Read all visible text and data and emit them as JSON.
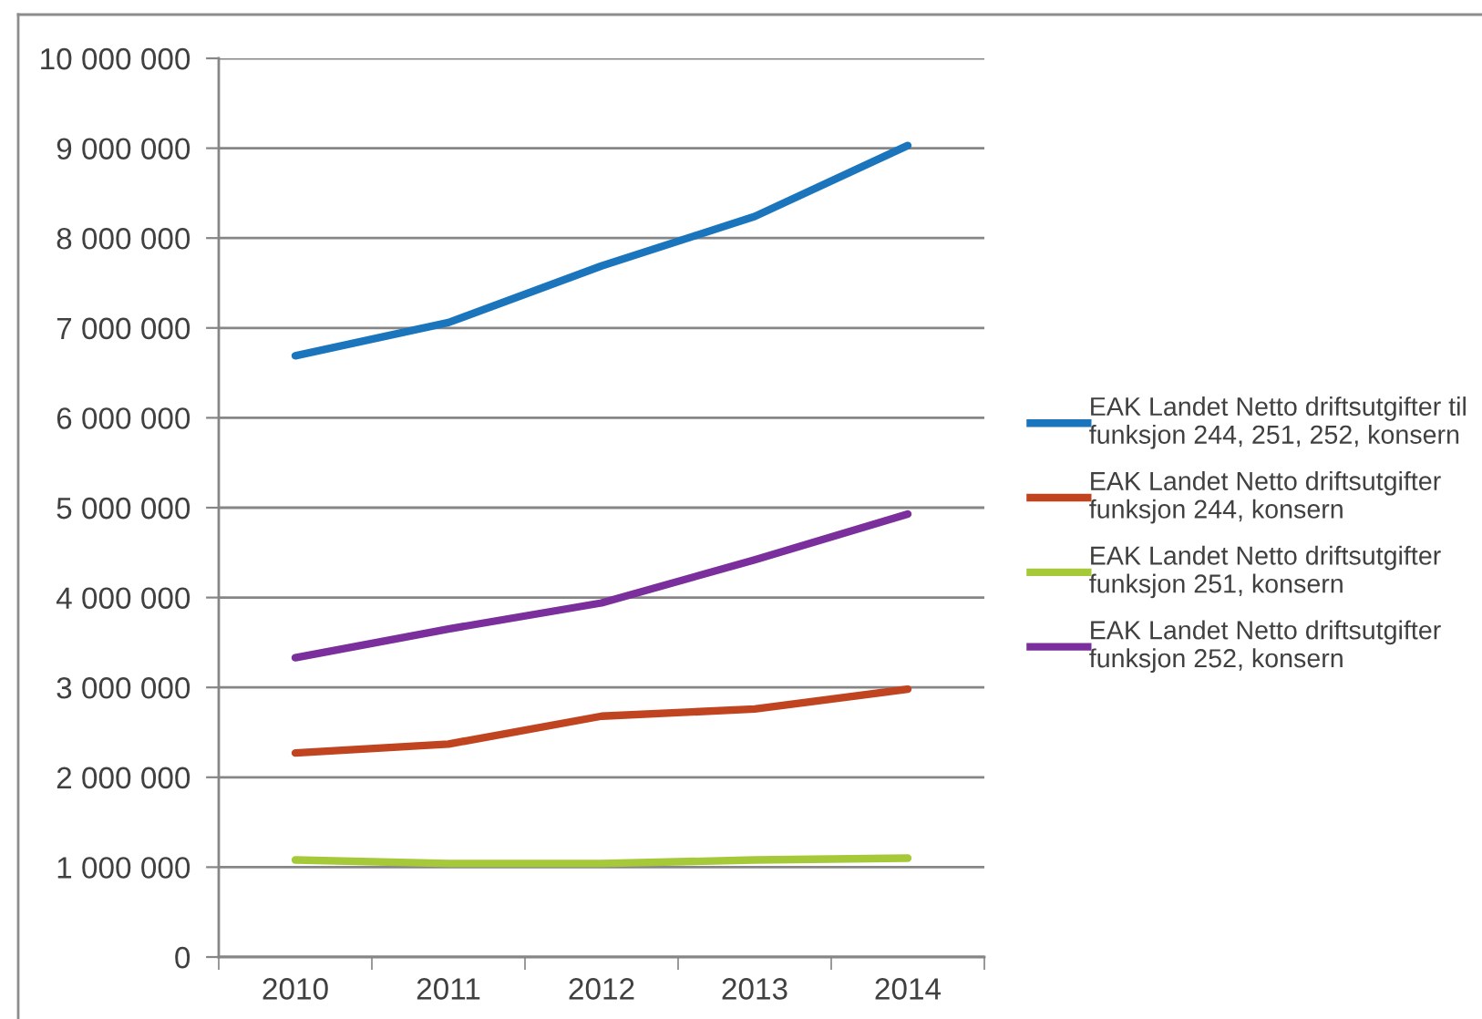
{
  "chart_data": {
    "type": "line",
    "categories": [
      "2010",
      "2011",
      "2012",
      "2013",
      "2014"
    ],
    "series": [
      {
        "name": "EAK Landet Netto driftsutgifter til funksjon 244, 251, 252, konsern",
        "color": "#1a75bc",
        "values": [
          6690000,
          7060000,
          7690000,
          8240000,
          9030000
        ]
      },
      {
        "name": "EAK Landet Netto driftsutgifter funksjon 244, konsern",
        "color": "#c0441f",
        "values": [
          2270000,
          2370000,
          2680000,
          2760000,
          2980000
        ]
      },
      {
        "name": "EAK Landet Netto driftsutgifter funksjon 251, konsern",
        "color": "#a6c93a",
        "values": [
          1080000,
          1040000,
          1040000,
          1080000,
          1100000
        ]
      },
      {
        "name": "EAK Landet Netto driftsutgifter funksjon 252, konsern",
        "color": "#7a2f9c",
        "values": [
          3330000,
          3650000,
          3940000,
          4420000,
          4930000
        ]
      }
    ],
    "ylim": [
      0,
      10000000
    ],
    "yticks": [
      {
        "value": 0,
        "label": "0"
      },
      {
        "value": 1000000,
        "label": "1 000 000"
      },
      {
        "value": 2000000,
        "label": "2 000 000"
      },
      {
        "value": 3000000,
        "label": "3 000 000"
      },
      {
        "value": 4000000,
        "label": "4 000 000"
      },
      {
        "value": 5000000,
        "label": "5 000 000"
      },
      {
        "value": 6000000,
        "label": "6 000 000"
      },
      {
        "value": 7000000,
        "label": "7 000 000"
      },
      {
        "value": 8000000,
        "label": "8 000 000"
      },
      {
        "value": 9000000,
        "label": "9 000 000"
      },
      {
        "value": 10000000,
        "label": "10 000 000"
      }
    ],
    "grid": "y",
    "legend": "right",
    "marker": "none",
    "line_style": "solid"
  }
}
